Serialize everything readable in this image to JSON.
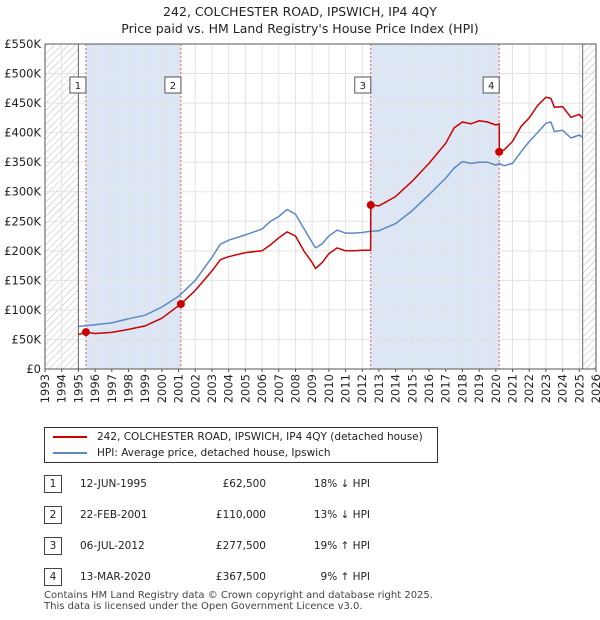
{
  "title": {
    "line1": "242, COLCHESTER ROAD, IPSWICH, IP4 4QY",
    "line2": "Price paid vs. HM Land Registry's House Price Index (HPI)"
  },
  "colors": {
    "price_line": "#cc0000",
    "hpi_line": "#5b8ac4",
    "shade": "#dde6f5",
    "hatch": "#999999",
    "marker_line": "#e06666"
  },
  "chart_data": {
    "type": "line",
    "xlim": [
      1993,
      2026
    ],
    "ylim": [
      0,
      550000
    ],
    "x_ticks": [
      "1993",
      "1994",
      "1995",
      "1996",
      "1997",
      "1998",
      "1999",
      "2000",
      "2001",
      "2002",
      "2003",
      "2004",
      "2005",
      "2006",
      "2007",
      "2008",
      "2009",
      "2010",
      "2011",
      "2012",
      "2013",
      "2014",
      "2015",
      "2016",
      "2017",
      "2018",
      "2019",
      "2020",
      "2021",
      "2022",
      "2023",
      "2024",
      "2025",
      "2026"
    ],
    "y_ticks": [
      {
        "value": 0,
        "label": "£0"
      },
      {
        "value": 50000,
        "label": "£50K"
      },
      {
        "value": 100000,
        "label": "£100K"
      },
      {
        "value": 150000,
        "label": "£150K"
      },
      {
        "value": 200000,
        "label": "£200K"
      },
      {
        "value": 250000,
        "label": "£250K"
      },
      {
        "value": 300000,
        "label": "£300K"
      },
      {
        "value": 350000,
        "label": "£350K"
      },
      {
        "value": 400000,
        "label": "£400K"
      },
      {
        "value": 450000,
        "label": "£450K"
      },
      {
        "value": 500000,
        "label": "£500K"
      },
      {
        "value": 550000,
        "label": "£550K"
      }
    ],
    "data_start": 1995.0,
    "data_end": 2025.2,
    "series": [
      {
        "name": "242, COLCHESTER ROAD, IPSWICH, IP4 4QY (detached house)",
        "x": [
          1995.0,
          1995.45,
          1996.0,
          1997.0,
          1998.0,
          1999.0,
          2000.0,
          2001.14,
          2002.0,
          2003.0,
          2003.5,
          2004.0,
          2005.0,
          2006.0,
          2006.5,
          2007.0,
          2007.5,
          2008.0,
          2008.5,
          2009.0,
          2009.2,
          2009.6,
          2010.0,
          2010.5,
          2011.0,
          2011.5,
          2012.0,
          2012.5,
          2012.51,
          2013.0,
          2014.0,
          2015.0,
          2016.0,
          2017.0,
          2017.5,
          2018.0,
          2018.5,
          2019.0,
          2019.5,
          2020.0,
          2020.2,
          2020.21,
          2020.5,
          2021.0,
          2021.5,
          2022.0,
          2022.5,
          2023.0,
          2023.3,
          2023.5,
          2024.0,
          2024.5,
          2025.0,
          2025.2
        ],
        "y": [
          58000,
          62500,
          60000,
          62000,
          67000,
          73000,
          86000,
          110000,
          133000,
          166000,
          185000,
          190000,
          197000,
          200000,
          210000,
          222000,
          232000,
          225000,
          200000,
          180000,
          170000,
          180000,
          195000,
          205000,
          200000,
          200000,
          201000,
          201000,
          277500,
          276000,
          292000,
          318000,
          348000,
          382000,
          408000,
          418000,
          415000,
          420000,
          418000,
          413000,
          415000,
          367500,
          371000,
          385000,
          410000,
          425000,
          446000,
          460000,
          458000,
          443000,
          444000,
          426000,
          431000,
          424000
        ]
      },
      {
        "name": "HPI: Average price, detached house, Ipswich",
        "x": [
          1995.0,
          1996.0,
          1997.0,
          1998.0,
          1999.0,
          2000.0,
          2001.0,
          2002.0,
          2003.0,
          2003.5,
          2004.0,
          2005.0,
          2006.0,
          2006.5,
          2007.0,
          2007.5,
          2008.0,
          2008.5,
          2009.0,
          2009.2,
          2009.6,
          2010.0,
          2010.5,
          2011.0,
          2011.5,
          2012.0,
          2012.5,
          2013.0,
          2014.0,
          2015.0,
          2016.0,
          2017.0,
          2017.5,
          2018.0,
          2018.5,
          2019.0,
          2019.5,
          2020.0,
          2020.2,
          2020.5,
          2021.0,
          2021.5,
          2022.0,
          2022.5,
          2023.0,
          2023.3,
          2023.5,
          2024.0,
          2024.5,
          2025.0,
          2025.2
        ],
        "y": [
          72000,
          75000,
          78000,
          85000,
          91000,
          105000,
          123000,
          150000,
          189000,
          211000,
          218000,
          227000,
          237000,
          250000,
          258000,
          270000,
          262000,
          238000,
          214000,
          205000,
          212000,
          225000,
          235000,
          230000,
          230000,
          231000,
          233000,
          234000,
          246000,
          268000,
          295000,
          323000,
          340000,
          351000,
          348000,
          350000,
          350000,
          345000,
          348000,
          344000,
          348000,
          367000,
          385000,
          400000,
          416000,
          418000,
          402000,
          404000,
          391000,
          396000,
          392000
        ]
      }
    ],
    "sales": [
      {
        "n": "1",
        "x": 1995.45,
        "y": 62500
      },
      {
        "n": "2",
        "x": 2001.14,
        "y": 110000
      },
      {
        "n": "3",
        "x": 2012.51,
        "y": 277500
      },
      {
        "n": "4",
        "x": 2020.2,
        "y": 367500
      }
    ]
  },
  "legend": {
    "price_label": "242, COLCHESTER ROAD, IPSWICH, IP4 4QY (detached house)",
    "hpi_label": "HPI: Average price, detached house, Ipswich"
  },
  "sales_table": [
    {
      "n": "1",
      "date": "12-JUN-1995",
      "price": "£62,500",
      "hpi": "18% ↓ HPI"
    },
    {
      "n": "2",
      "date": "22-FEB-2001",
      "price": "£110,000",
      "hpi": "13% ↓ HPI"
    },
    {
      "n": "3",
      "date": "06-JUL-2012",
      "price": "£277,500",
      "hpi": "19% ↑ HPI"
    },
    {
      "n": "4",
      "date": "13-MAR-2020",
      "price": "£367,500",
      "hpi": "9% ↑ HPI"
    }
  ],
  "footer": {
    "line1": "Contains HM Land Registry data © Crown copyright and database right 2025.",
    "line2": "This data is licensed under the Open Government Licence v3.0."
  }
}
